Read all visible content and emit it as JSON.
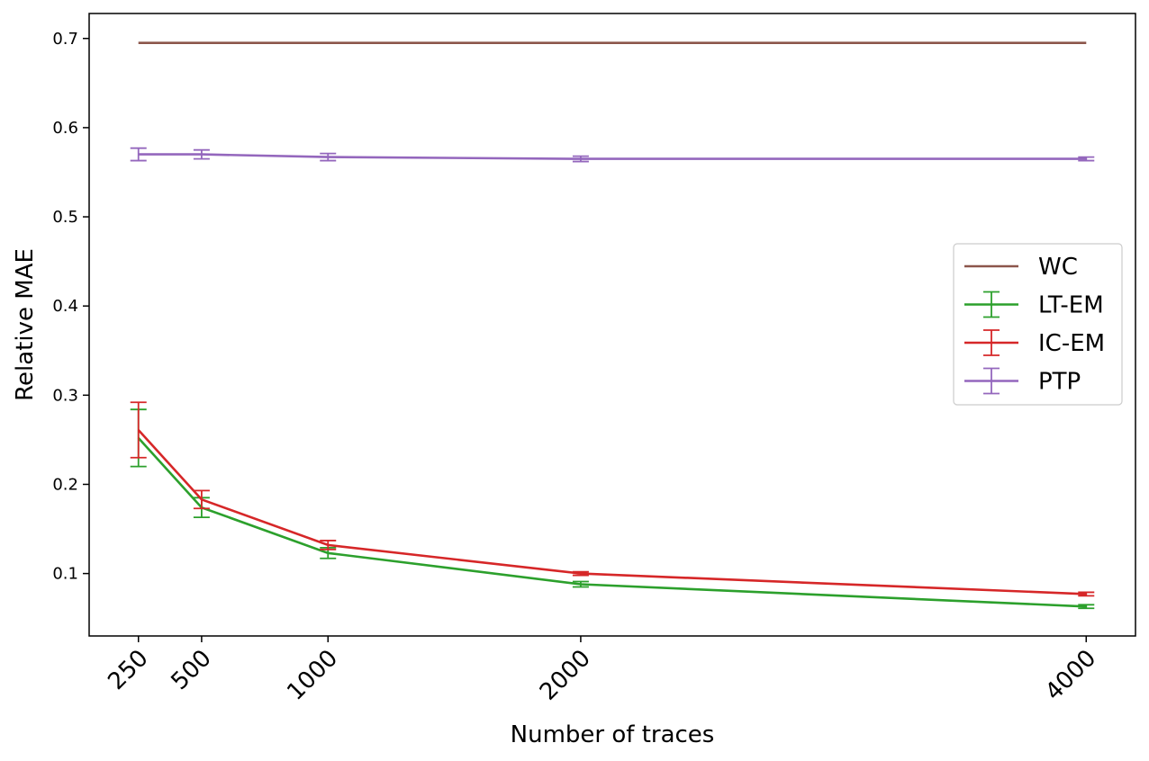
{
  "chart_data": {
    "type": "line",
    "xlabel": "Number of traces",
    "ylabel": "Relative MAE",
    "x": [
      250,
      500,
      1000,
      2000,
      4000
    ],
    "x_tick_labels": [
      "250",
      "500",
      "1000",
      "2000",
      "4000"
    ],
    "y_ticks": [
      0.1,
      0.2,
      0.3,
      0.4,
      0.5,
      0.6,
      0.7
    ],
    "y_tick_labels": [
      "0.1",
      "0.2",
      "0.3",
      "0.4",
      "0.5",
      "0.6",
      "0.7"
    ],
    "ylim": [
      0.03,
      0.728
    ],
    "xlim": [
      55,
      4195
    ],
    "grid": false,
    "legend_position": "center-right",
    "series": [
      {
        "name": "WC",
        "color": "#8c564b",
        "errorbars": false,
        "values": [
          0.695,
          0.695,
          0.695,
          0.695,
          0.695
        ]
      },
      {
        "name": "LT-EM",
        "color": "#2ca02c",
        "errorbars": true,
        "values": [
          0.252,
          0.174,
          0.123,
          0.088,
          0.063
        ],
        "errors": [
          0.032,
          0.011,
          0.006,
          0.003,
          0.002
        ]
      },
      {
        "name": "IC-EM",
        "color": "#d62728",
        "errorbars": true,
        "values": [
          0.261,
          0.183,
          0.132,
          0.1,
          0.077
        ],
        "errors": [
          0.031,
          0.01,
          0.005,
          0.002,
          0.002
        ]
      },
      {
        "name": "PTP",
        "color": "#9467bd",
        "errorbars": true,
        "values": [
          0.57,
          0.57,
          0.567,
          0.565,
          0.565
        ],
        "errors": [
          0.007,
          0.005,
          0.004,
          0.003,
          0.002
        ]
      }
    ]
  }
}
